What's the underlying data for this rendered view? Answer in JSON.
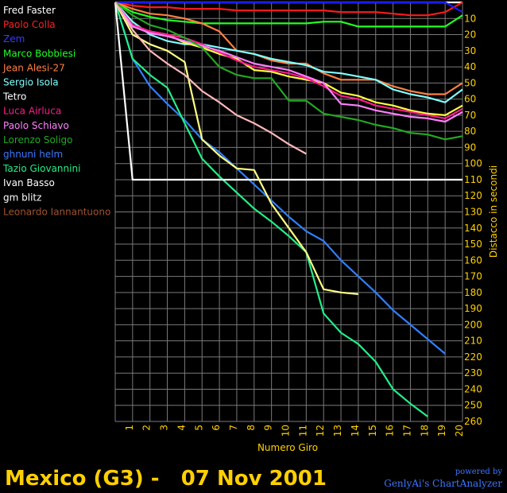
{
  "chart_data": {
    "type": "line",
    "title": "Mexico (G3) -   07 Nov 2001",
    "xlabel": "Numero Giro",
    "ylabel": "Distacco in secondi",
    "x": [
      0,
      1,
      2,
      3,
      4,
      5,
      6,
      7,
      8,
      9,
      10,
      11,
      12,
      13,
      14,
      15,
      16,
      17,
      18,
      19,
      20
    ],
    "xticks": [
      1,
      2,
      3,
      4,
      5,
      6,
      7,
      8,
      9,
      10,
      11,
      12,
      13,
      14,
      15,
      16,
      17,
      18,
      19,
      20
    ],
    "yticks": [
      10,
      20,
      30,
      40,
      50,
      60,
      70,
      80,
      90,
      100,
      110,
      120,
      130,
      140,
      150,
      160,
      170,
      180,
      190,
      200,
      210,
      220,
      230,
      240,
      250,
      260
    ],
    "xlim": [
      0,
      20
    ],
    "ylim": [
      0,
      260
    ],
    "y_inverted": true,
    "grid": true,
    "legend_position": "top-left",
    "series": [
      {
        "name": "Fred Faster",
        "color": "#ffffff",
        "values": [
          0,
          0,
          0,
          0,
          0,
          0,
          0,
          0,
          0,
          0,
          0,
          0,
          0,
          0,
          0,
          0,
          0,
          0,
          0,
          0,
          0
        ]
      },
      {
        "name": "Paolo Colla",
        "color": "#ff1a1a",
        "values": [
          0,
          2,
          3,
          3,
          4,
          4,
          4,
          5,
          5,
          5,
          5,
          5,
          5,
          6,
          6,
          6,
          7,
          8,
          8,
          6,
          0
        ]
      },
      {
        "name": "Zem",
        "color": "#1a1aff",
        "values": [
          0,
          0,
          0,
          0,
          0,
          0,
          0,
          0,
          0,
          0,
          0,
          0,
          0,
          0,
          0,
          0,
          0,
          0,
          0,
          0,
          6
        ]
      },
      {
        "name": "Marco Bobbiesi",
        "color": "#22ff22",
        "values": [
          0,
          6,
          9,
          11,
          12,
          13,
          13,
          13,
          13,
          13,
          13,
          13,
          12,
          12,
          15,
          15,
          15,
          15,
          15,
          15,
          8
        ]
      },
      {
        "name": "Jean Alesi-27",
        "color": "#ff8040",
        "values": [
          0,
          4,
          7,
          8,
          10,
          13,
          18,
          30,
          32,
          36,
          38,
          38,
          44,
          48,
          48,
          48,
          52,
          55,
          57,
          57,
          50
        ]
      },
      {
        "name": "Sergio Isola",
        "color": "#80ffff",
        "values": [
          0,
          12,
          20,
          24,
          26,
          26,
          28,
          30,
          32,
          35,
          37,
          39,
          43,
          44,
          46,
          48,
          54,
          57,
          59,
          62,
          54
        ]
      },
      {
        "name": "Tetro",
        "color": "#ffff40",
        "values": [
          0,
          14,
          18,
          20,
          25,
          28,
          32,
          35,
          42,
          43,
          46,
          48,
          50,
          56,
          58,
          62,
          64,
          67,
          69,
          70,
          64
        ]
      },
      {
        "name": "Luca Airluca",
        "color": "#ff1a8c",
        "values": [
          0,
          14,
          18,
          20,
          22,
          26,
          31,
          36,
          40,
          42,
          44,
          47,
          52,
          58,
          60,
          64,
          66,
          68,
          70,
          72,
          66
        ]
      },
      {
        "name": "Paolo Schiavo",
        "color": "#ff80ff",
        "values": [
          0,
          15,
          19,
          21,
          24,
          27,
          30,
          34,
          38,
          40,
          42,
          46,
          50,
          63,
          64,
          67,
          69,
          71,
          72,
          74,
          68
        ]
      },
      {
        "name": "Lorenzo Soligo",
        "color": "#22aa22",
        "values": [
          0,
          8,
          14,
          17,
          22,
          28,
          40,
          45,
          47,
          47,
          61,
          61,
          69,
          71,
          73,
          76,
          78,
          81,
          82,
          85,
          83
        ]
      },
      {
        "name": "ghnuni helm",
        "color": "#2f80ff",
        "values": [
          0,
          35,
          52,
          63,
          73,
          85,
          93,
          103,
          113,
          123,
          133,
          142,
          148,
          160,
          170,
          180,
          191,
          200,
          209,
          218,
          null
        ]
      },
      {
        "name": "Tazio Giovannini",
        "color": "#22ee88",
        "values": [
          0,
          35,
          45,
          53,
          75,
          97,
          108,
          118,
          128,
          136,
          145,
          155,
          193,
          205,
          212,
          223,
          240,
          249,
          257,
          null,
          null
        ]
      },
      {
        "name": "Ivan Basso",
        "color": "#ffffff",
        "values": [
          0,
          110,
          110,
          110,
          110,
          110,
          110,
          110,
          110,
          110,
          110,
          110,
          110,
          110,
          110,
          110,
          110,
          110,
          110,
          110,
          110
        ]
      },
      {
        "name": "gm blitz",
        "color": "#ffff80",
        "values": [
          0,
          20,
          26,
          30,
          37,
          85,
          95,
          103,
          104,
          125,
          140,
          155,
          178,
          180,
          181,
          null,
          null,
          null,
          null,
          null,
          null
        ]
      },
      {
        "name": "Leonardo Iannantuono",
        "color": "#ffb8b8",
        "values": [
          0,
          17,
          30,
          38,
          45,
          55,
          62,
          70,
          75,
          81,
          88,
          94,
          null,
          null,
          null,
          null,
          null,
          null,
          null,
          null,
          null
        ]
      }
    ]
  },
  "legend": [
    {
      "label": "Fred Faster",
      "color": "#ffffff"
    },
    {
      "label": "Paolo Colla",
      "color": "#ff2020"
    },
    {
      "label": " Zem",
      "color": "#3a3aff"
    },
    {
      "label": "Marco Bobbiesi",
      "color": "#22ff22"
    },
    {
      "label": "Jean Alesi-27",
      "color": "#ff8040"
    },
    {
      "label": "Sergio Isola",
      "color": "#80ffff"
    },
    {
      "label": " Tetro",
      "color": "#ffffff"
    },
    {
      "label": "Luca Airluca",
      "color": "#ff1a8c"
    },
    {
      "label": "Paolo Schiavo",
      "color": "#ff80ff"
    },
    {
      "label": "Lorenzo Soligo",
      "color": "#22aa22"
    },
    {
      "label": "ghnuni helm",
      "color": "#3a78ff"
    },
    {
      "label": "Tazio Giovannini",
      "color": "#22ee88"
    },
    {
      "label": "Ivan Basso",
      "color": "#ffffff"
    },
    {
      "label": "gm blitz",
      "color": "#ffffff"
    },
    {
      "label": "Leonardo Iannantuono",
      "color": "#a0522d"
    }
  ],
  "footer": {
    "title": "Mexico (G3) -   07 Nov 2001",
    "powered_by": "powered by",
    "brand": "GenlyAi's ChartAnalyzer"
  }
}
